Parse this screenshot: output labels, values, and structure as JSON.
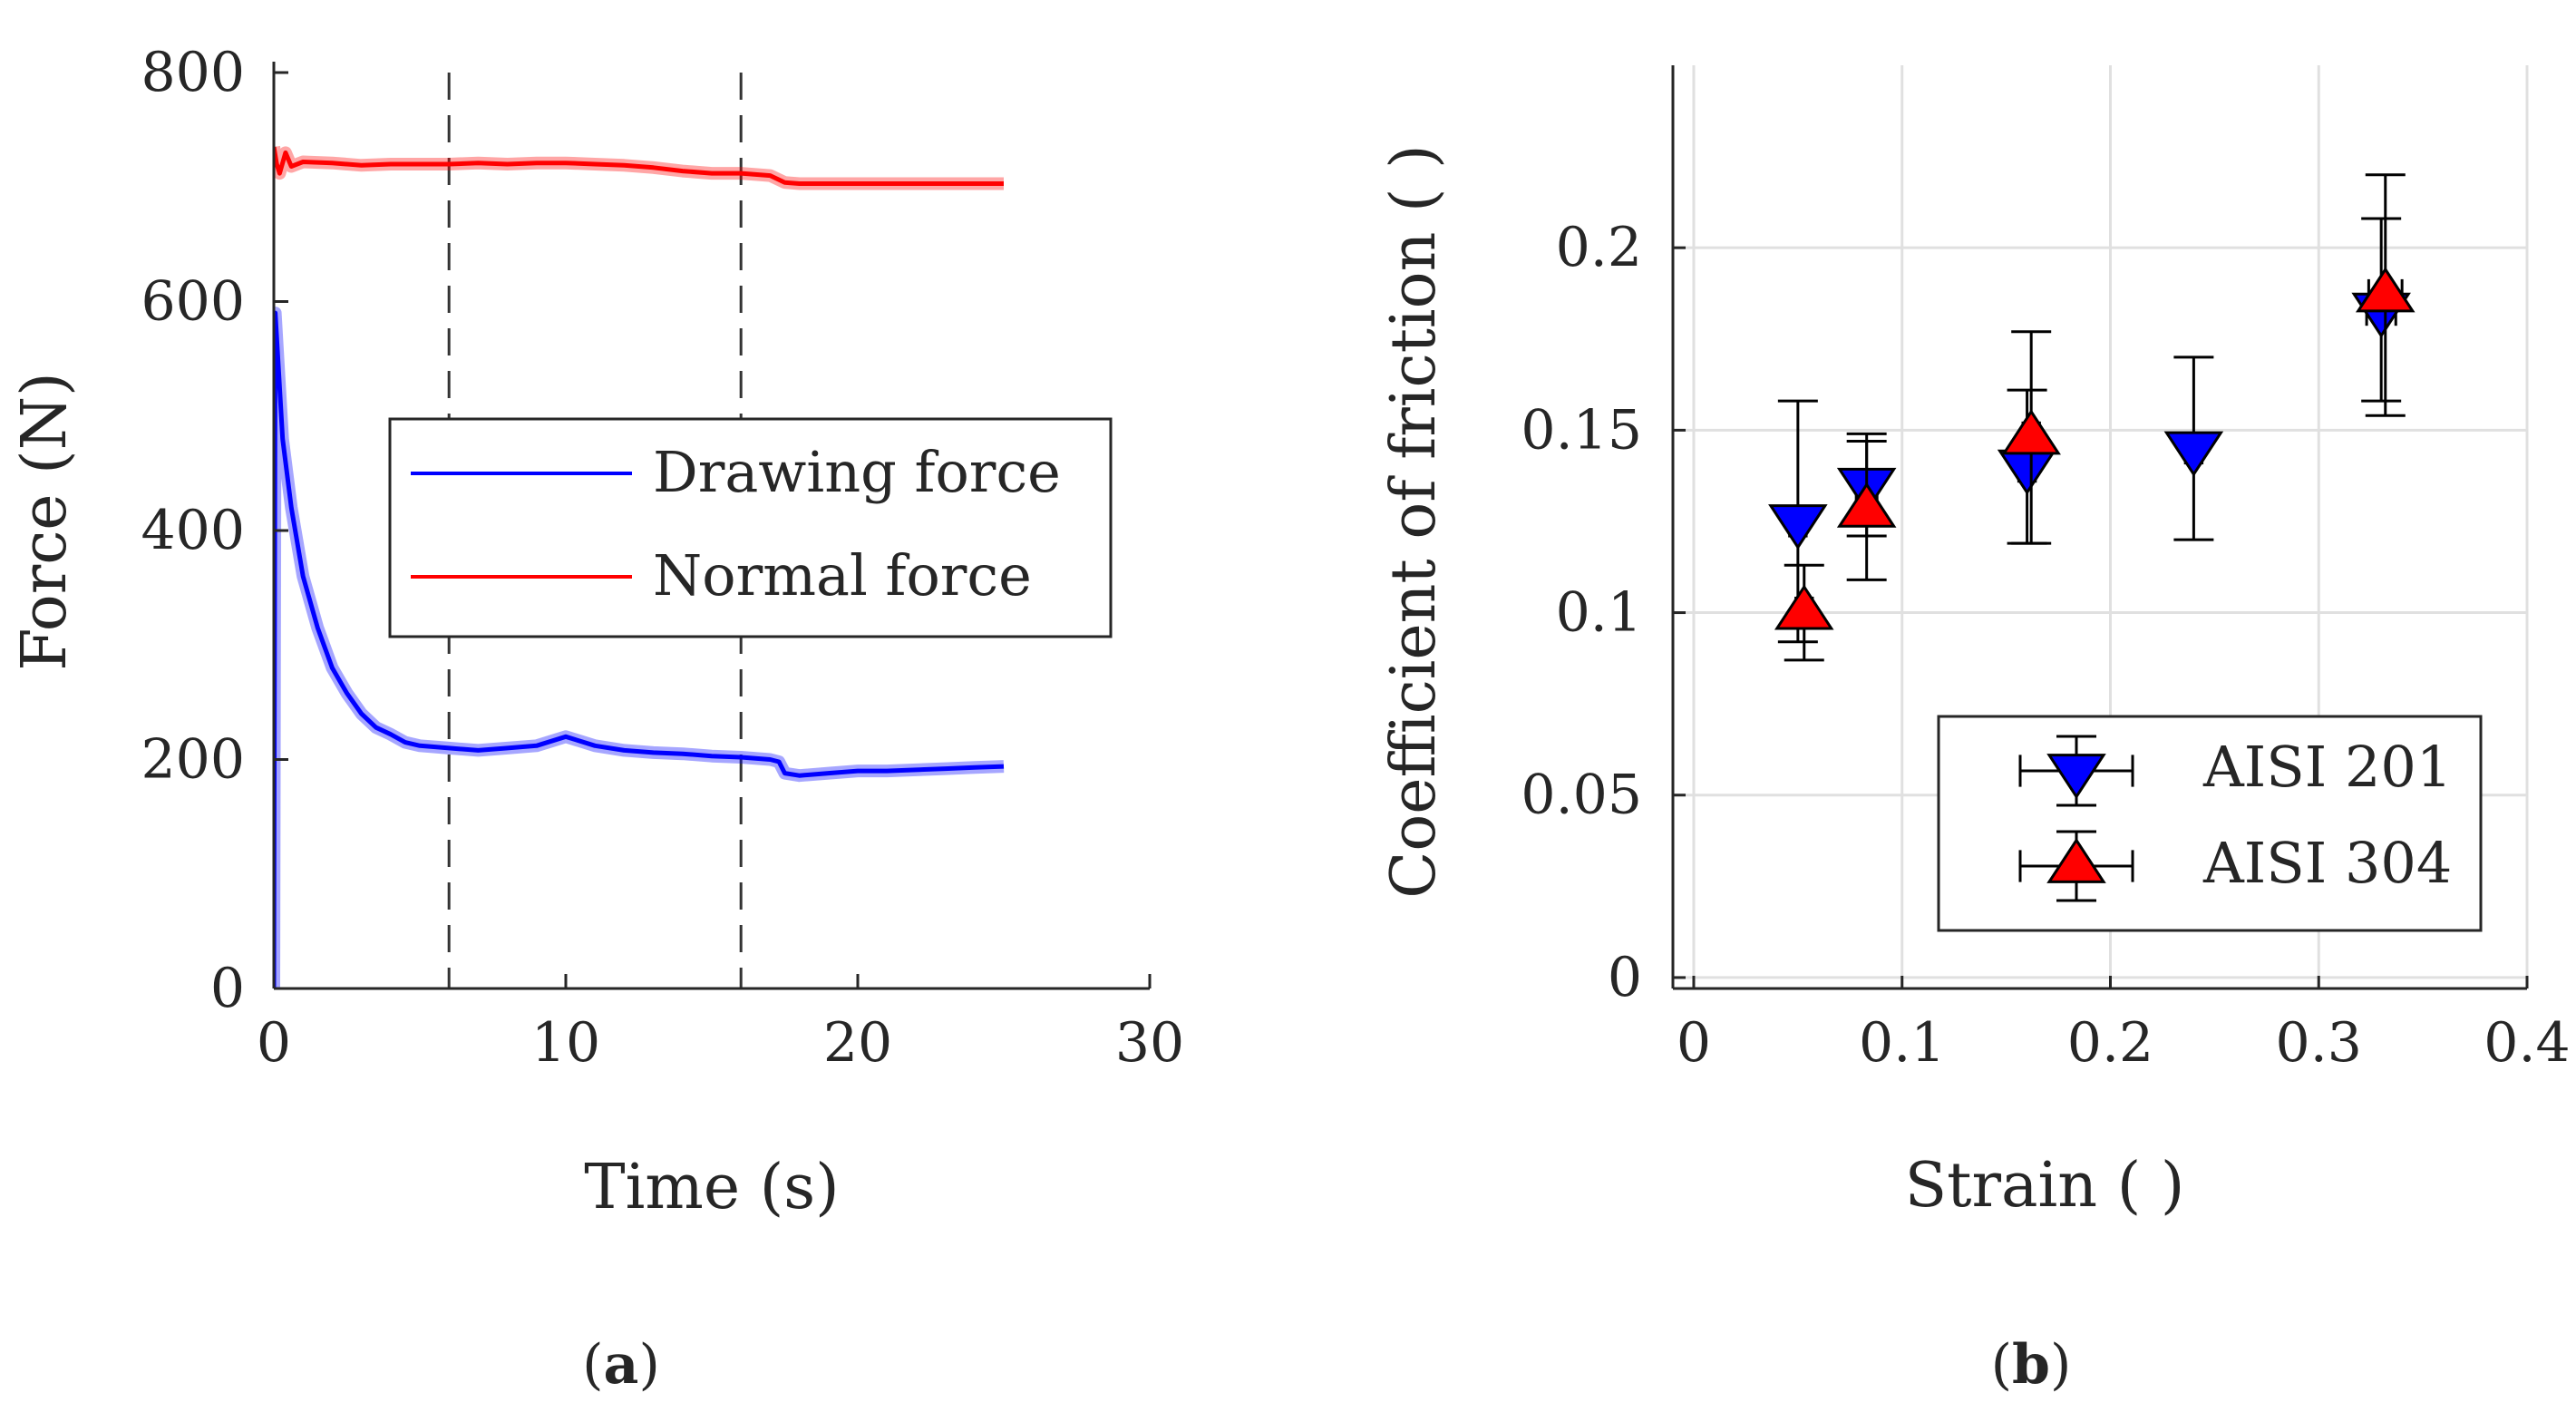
{
  "chart_data": [
    {
      "type": "line",
      "panel_label": {
        "open": "(",
        "letter": "a",
        "close": ")"
      },
      "xlabel": "Time (s)",
      "ylabel": "Force (N)",
      "xlim": [
        0,
        30
      ],
      "ylim": [
        0,
        800
      ],
      "xticks": [
        0,
        10,
        20,
        30
      ],
      "yticks": [
        0,
        200,
        400,
        600,
        800
      ],
      "xtick_labels": [
        "0",
        "10",
        "20",
        "30"
      ],
      "ytick_labels": [
        "0",
        "200",
        "400",
        "600",
        "800"
      ],
      "grid": false,
      "vertical_lines": [
        6,
        16
      ],
      "legend": {
        "position": "center-right"
      },
      "series": [
        {
          "name": "Drawing force",
          "color": "#0000FF",
          "x": [
            0,
            0.05,
            0.3,
            0.6,
            1,
            1.5,
            2,
            2.5,
            3,
            3.5,
            4,
            4.5,
            5,
            6,
            7,
            8,
            9,
            10,
            11,
            12,
            13,
            14,
            15,
            16,
            17,
            17.3,
            17.5,
            18,
            19,
            20,
            21,
            22,
            23,
            24,
            25
          ],
          "y": [
            0,
            590,
            480,
            420,
            360,
            315,
            280,
            258,
            240,
            228,
            222,
            215,
            212,
            210,
            208,
            210,
            212,
            220,
            212,
            208,
            206,
            205,
            203,
            202,
            200,
            198,
            188,
            186,
            188,
            190,
            190,
            191,
            192,
            193,
            194
          ]
        },
        {
          "name": "Normal force",
          "color": "#FF0000",
          "x": [
            0,
            0.1,
            0.2,
            0.4,
            0.6,
            1,
            2,
            3,
            4,
            5,
            6,
            7,
            8,
            9,
            10,
            11,
            12,
            13,
            14,
            15,
            16,
            17,
            17.5,
            18,
            19,
            20,
            21,
            22,
            23,
            24,
            25
          ],
          "y": [
            735,
            720,
            712,
            730,
            718,
            722,
            721,
            719,
            720,
            720,
            720,
            721,
            720,
            721,
            721,
            720,
            719,
            717,
            714,
            712,
            712,
            710,
            704,
            703,
            703,
            703,
            703,
            703,
            703,
            703,
            703
          ]
        }
      ]
    },
    {
      "type": "scatter",
      "panel_label": {
        "open": "(",
        "letter": "b",
        "close": ")"
      },
      "xlabel": "Strain ( )",
      "ylabel": "Coefficient of friction ( )",
      "xlim": [
        -0.01,
        0.4
      ],
      "ylim": [
        -0.003,
        0.25
      ],
      "xticks": [
        0,
        0.1,
        0.2,
        0.3,
        0.4
      ],
      "yticks": [
        0,
        0.05,
        0.1,
        0.15,
        0.2
      ],
      "xtick_labels": [
        "0",
        "0.1",
        "0.2",
        "0.3",
        "0.4"
      ],
      "ytick_labels": [
        "0",
        "0.05",
        "0.1",
        "0.15",
        "0.2"
      ],
      "grid": true,
      "legend": {
        "position": "bottom-right"
      },
      "series": [
        {
          "name": "AISI 201",
          "color": "#0000FF",
          "marker": "triangle-down",
          "x": [
            0.05,
            0.083,
            0.16,
            0.24,
            0.33
          ],
          "y": [
            0.125,
            0.135,
            0.14,
            0.145,
            0.183
          ],
          "y_err": [
            0.033,
            0.014,
            0.021,
            0.025,
            0.025
          ],
          "x_err": [
            0.004,
            0.004,
            0.004,
            0.004,
            0.007
          ]
        },
        {
          "name": "AISI 304",
          "color": "#FF0000",
          "marker": "triangle-up",
          "x": [
            0.053,
            0.083,
            0.162,
            0.332
          ],
          "y": [
            0.1,
            0.128,
            0.148,
            0.187
          ],
          "y_err": [
            0.013,
            0.019,
            0.029,
            0.033
          ],
          "x_err": [
            0.004,
            0.005,
            0.004,
            0.008
          ]
        }
      ]
    }
  ]
}
